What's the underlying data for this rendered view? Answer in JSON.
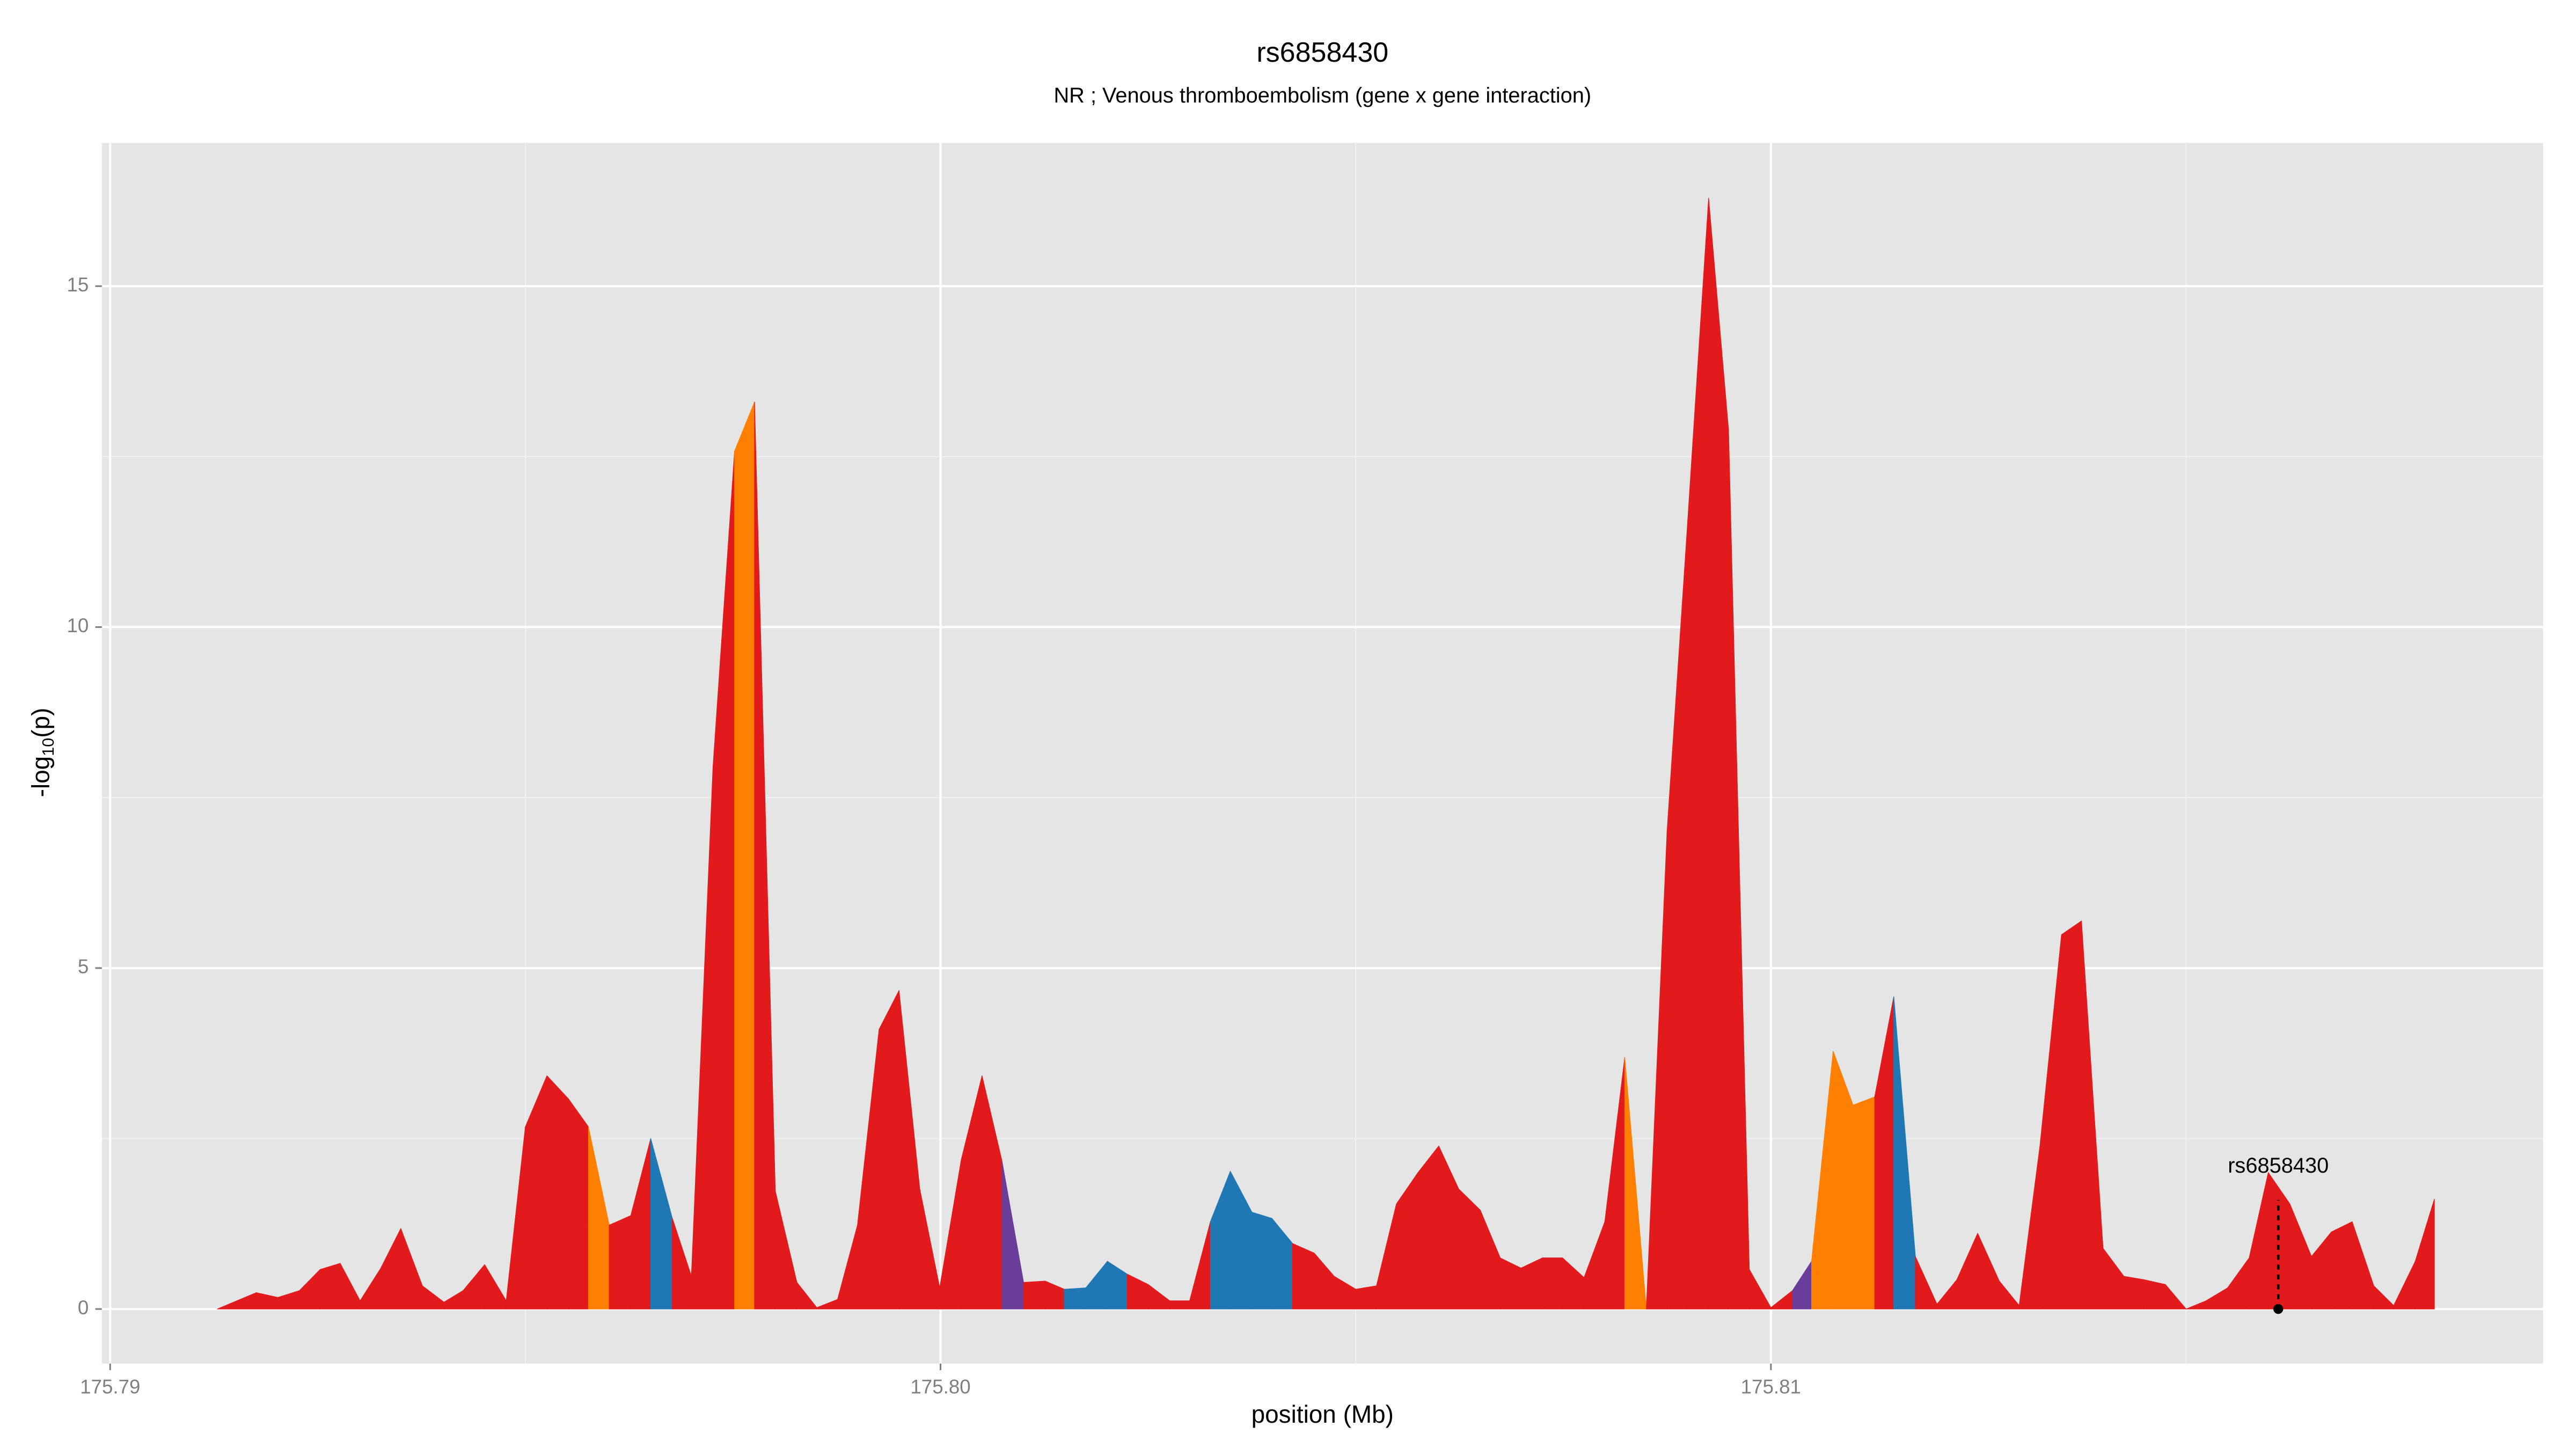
{
  "chart_data": {
    "type": "area",
    "title": "rs6858430",
    "subtitle": "NR ; Venous thromboembolism (gene x gene interaction)",
    "xlabel": "position (Mb)",
    "ylabel": {
      "text": "-log",
      "sub": "10",
      "after": "(p)"
    },
    "xlim": [
      175.7899,
      175.8193
    ],
    "ylim": [
      -0.8,
      17.1
    ],
    "xticks": [
      175.79,
      {
        "value": 175.8,
        "label": "175.80"
      },
      175.81
    ],
    "xminor": [
      175.795,
      175.805,
      175.815
    ],
    "yticks": [
      0,
      5,
      10,
      15
    ],
    "yminor": [
      2.5,
      7.5,
      12.5
    ],
    "grid": true,
    "x": [
      175.79129,
      175.79176,
      175.79202,
      175.79228,
      175.79253,
      175.79277,
      175.79301,
      175.79326,
      175.7935,
      175.79376,
      175.79402,
      175.79425,
      175.79451,
      175.79477,
      175.795,
      175.79526,
      175.79552,
      175.79576,
      175.79601,
      175.79627,
      175.79651,
      175.79677,
      175.797,
      175.79726,
      175.79752,
      175.79776,
      175.79801,
      175.79827,
      175.79851,
      175.79876,
      175.799,
      175.79926,
      175.7995,
      175.79975,
      175.79999,
      175.80025,
      175.8005,
      175.80074,
      175.801,
      175.80126,
      175.80149,
      175.80175,
      175.80201,
      175.80225,
      175.8025,
      175.80276,
      175.803,
      175.80325,
      175.80349,
      175.80375,
      175.80399,
      175.80424,
      175.8045,
      175.80474,
      175.805,
      175.80525,
      175.80549,
      175.80575,
      175.806,
      175.80624,
      175.8065,
      175.80674,
      175.80699,
      175.80725,
      175.80749,
      175.80775,
      175.808,
      175.80824,
      175.8085,
      175.80875,
      175.80899,
      175.80925,
      175.80949,
      175.80974,
      175.81,
      175.81026,
      175.81049,
      175.81075,
      175.81099,
      175.81125,
      175.81148,
      175.81174,
      175.812,
      175.81224,
      175.81249,
      175.81275,
      175.81299,
      175.81324,
      175.8135,
      175.81374,
      175.814,
      175.81425,
      175.81449,
      175.81475,
      175.815,
      175.81524,
      175.8155,
      175.81576,
      175.81599,
      175.81625,
      175.81651,
      175.81675,
      175.817,
      175.81726,
      175.8175,
      175.81776,
      175.81799
    ],
    "values": [
      0,
      0.24,
      0.17,
      0.27,
      0.58,
      0.67,
      0.12,
      0.6,
      1.18,
      0.34,
      0.1,
      0.27,
      0.65,
      0.12,
      2.67,
      3.42,
      3.08,
      2.67,
      1.23,
      1.37,
      2.5,
      1.33,
      0.48,
      7.95,
      12.58,
      13.3,
      1.73,
      0.39,
      0.02,
      0.14,
      1.23,
      4.1,
      4.67,
      1.76,
      0.31,
      2.19,
      3.42,
      2.17,
      0.39,
      0.41,
      0.29,
      0.31,
      0.7,
      0.51,
      0.36,
      0.12,
      0.12,
      1.28,
      2.02,
      1.42,
      1.33,
      0.96,
      0.82,
      0.48,
      0.29,
      0.34,
      1.54,
      2.0,
      2.39,
      1.76,
      1.45,
      0.75,
      0.6,
      0.75,
      0.75,
      0.46,
      1.28,
      3.69,
      0,
      7.01,
      11.4,
      16.29,
      12.89,
      0.58,
      0.02,
      0.27,
      0.7,
      3.78,
      2.99,
      3.11,
      4.58,
      0.77,
      0.07,
      0.43,
      1.11,
      0.41,
      0.05,
      2.39,
      5.49,
      5.69,
      0.89,
      0.48,
      0.43,
      0.36,
      0,
      0.12,
      0.31,
      0.75,
      2.0,
      1.54,
      0.77,
      1.13,
      1.28,
      0.34,
      0.05,
      0.7,
      1.61
    ],
    "colors": [
      "#e31a1c",
      "#e31a1c",
      "#e31a1c",
      "#e31a1c",
      "#e31a1c",
      "#e31a1c",
      "#e31a1c",
      "#e31a1c",
      "#e31a1c",
      "#e31a1c",
      "#e31a1c",
      "#e31a1c",
      "#e31a1c",
      "#e31a1c",
      "#e31a1c",
      "#e31a1c",
      "#e31a1c",
      "#ff7f00",
      "#e31a1c",
      "#e31a1c",
      "#1f78b4",
      "#e31a1c",
      "#e31a1c",
      "#e31a1c",
      "#ff7f00",
      "#e31a1c",
      "#e31a1c",
      "#e31a1c",
      "#e31a1c",
      "#e31a1c",
      "#e31a1c",
      "#e31a1c",
      "#e31a1c",
      "#e31a1c",
      "#e31a1c",
      "#e31a1c",
      "#e31a1c",
      "#6a3d9a",
      "#e31a1c",
      "#e31a1c",
      "#1f78b4",
      "#1f78b4",
      "#1f78b4",
      "#e31a1c",
      "#e31a1c",
      "#e31a1c",
      "#e31a1c",
      "#1f78b4",
      "#1f78b4",
      "#1f78b4",
      "#1f78b4",
      "#e31a1c",
      "#e31a1c",
      "#e31a1c",
      "#e31a1c",
      "#e31a1c",
      "#e31a1c",
      "#e31a1c",
      "#e31a1c",
      "#e31a1c",
      "#e31a1c",
      "#e31a1c",
      "#e31a1c",
      "#e31a1c",
      "#e31a1c",
      "#e31a1c",
      "#e31a1c",
      "#ff7f00",
      "#e31a1c",
      "#e31a1c",
      "#e31a1c",
      "#e31a1c",
      "#e31a1c",
      "#e31a1c",
      "#e31a1c",
      "#6a3d9a",
      "#ff7f00",
      "#ff7f00",
      "#ff7f00",
      "#e31a1c",
      "#1f78b4",
      "#e31a1c",
      "#e31a1c",
      "#e31a1c",
      "#e31a1c",
      "#e31a1c",
      "#e31a1c",
      "#e31a1c",
      "#e31a1c",
      "#e31a1c",
      "#e31a1c",
      "#e31a1c",
      "#e31a1c",
      "#e31a1c",
      "#e31a1c",
      "#e31a1c",
      "#e31a1c",
      "#e31a1c",
      "#e31a1c",
      "#e31a1c",
      "#e31a1c",
      "#e31a1c",
      "#e31a1c",
      "#e31a1c",
      "#e31a1c",
      "#e31a1c",
      "#e31a1c"
    ],
    "annotation": {
      "text": "rs6858430",
      "x": 175.81611,
      "y": 0,
      "y_top": 1.6
    }
  }
}
